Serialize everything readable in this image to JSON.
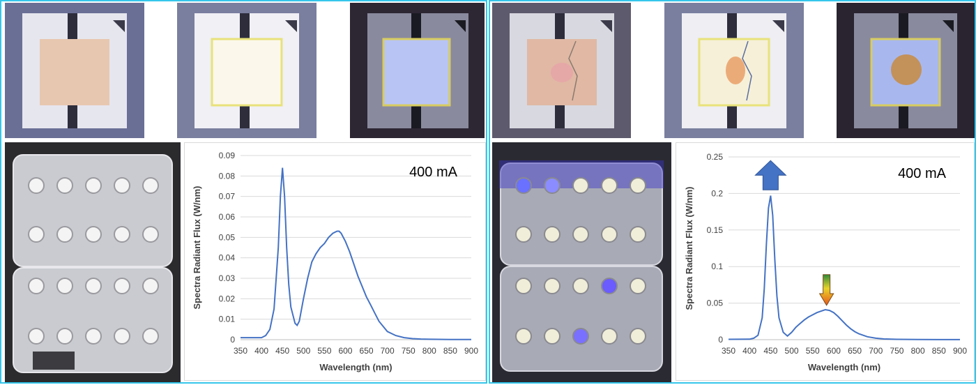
{
  "colors": {
    "frame_border": "#35c6ea",
    "line": "#4472c4",
    "arrow_up": "#4472c4",
    "grid": "#d9d9d9"
  },
  "left": {
    "led_tiles": [
      {
        "state": "phosphor-unlit"
      },
      {
        "state": "phosphor-bright"
      },
      {
        "state": "phosphor-blue"
      }
    ],
    "module_photo": {
      "description_icon": "led-module-icon"
    }
  },
  "right": {
    "led_tiles": [
      {
        "state": "phosphor-cracked"
      },
      {
        "state": "phosphor-burnt"
      },
      {
        "state": "phosphor-burnt-blue"
      }
    ],
    "module_photo": {
      "description_icon": "led-module-degraded-icon"
    }
  },
  "chart_data": [
    {
      "type": "line",
      "annotation": "400 mA",
      "xlabel": "Wavelength (nm)",
      "ylabel": "Spectra Radiant Flux (W/nm)",
      "xlim": [
        350,
        900
      ],
      "ylim": [
        0,
        0.09
      ],
      "xticks": [
        "350",
        "400",
        "450",
        "500",
        "550",
        "600",
        "650",
        "700",
        "750",
        "800",
        "850",
        "900"
      ],
      "yticks": [
        "0",
        "0.01",
        "0.02",
        "0.03",
        "0.04",
        "0.05",
        "0.06",
        "0.07",
        "0.08",
        "0.09"
      ],
      "grid": "horizontal",
      "series": [
        {
          "x": [
            350,
            380,
            400,
            410,
            420,
            430,
            440,
            445,
            450,
            455,
            460,
            465,
            470,
            480,
            485,
            490,
            500,
            510,
            520,
            530,
            540,
            550,
            560,
            570,
            580,
            585,
            590,
            600,
            610,
            620,
            630,
            640,
            650,
            660,
            670,
            680,
            700,
            720,
            740,
            760,
            780,
            800,
            850,
            900
          ],
          "y": [
            0.001,
            0.001,
            0.001,
            0.002,
            0.005,
            0.015,
            0.045,
            0.07,
            0.084,
            0.07,
            0.045,
            0.027,
            0.016,
            0.008,
            0.007,
            0.009,
            0.02,
            0.03,
            0.038,
            0.042,
            0.045,
            0.047,
            0.05,
            0.052,
            0.053,
            0.053,
            0.052,
            0.048,
            0.043,
            0.037,
            0.031,
            0.026,
            0.021,
            0.017,
            0.013,
            0.009,
            0.004,
            0.002,
            0.001,
            0.0005,
            0.0003,
            0.0002,
            0.0001,
            0.0001
          ]
        }
      ]
    },
    {
      "type": "line",
      "annotation": "400 mA",
      "xlabel": "Wavelength (nm)",
      "ylabel": "Spectra Radiant Flux (W/nm)",
      "xlim": [
        350,
        900
      ],
      "ylim": [
        0,
        0.25
      ],
      "xticks": [
        "350",
        "400",
        "450",
        "500",
        "550",
        "600",
        "650",
        "700",
        "750",
        "800",
        "850",
        "900"
      ],
      "yticks": [
        "0",
        "0.05",
        "0.1",
        "0.15",
        "0.2",
        "0.25"
      ],
      "grid": "horizontal",
      "series": [
        {
          "x": [
            350,
            400,
            410,
            420,
            430,
            435,
            440,
            445,
            450,
            455,
            460,
            465,
            470,
            480,
            490,
            500,
            510,
            520,
            530,
            540,
            550,
            560,
            570,
            580,
            590,
            600,
            610,
            620,
            630,
            640,
            650,
            660,
            680,
            700,
            720,
            750,
            800,
            850,
            900
          ],
          "y": [
            0.0005,
            0.0007,
            0.002,
            0.006,
            0.03,
            0.07,
            0.13,
            0.18,
            0.197,
            0.17,
            0.11,
            0.06,
            0.03,
            0.01,
            0.005,
            0.01,
            0.017,
            0.022,
            0.027,
            0.031,
            0.034,
            0.037,
            0.039,
            0.041,
            0.04,
            0.037,
            0.032,
            0.026,
            0.02,
            0.015,
            0.011,
            0.008,
            0.004,
            0.002,
            0.001,
            0.0005,
            0.0002,
            0.0001,
            0.0001
          ]
        }
      ],
      "markers": [
        {
          "type": "up-arrow",
          "label_icon": "increase-arrow-icon",
          "x": 450,
          "y": 0.225
        },
        {
          "type": "down-arrow",
          "label_icon": "decrease-arrow-icon",
          "x": 583,
          "y": 0.068
        }
      ]
    }
  ]
}
